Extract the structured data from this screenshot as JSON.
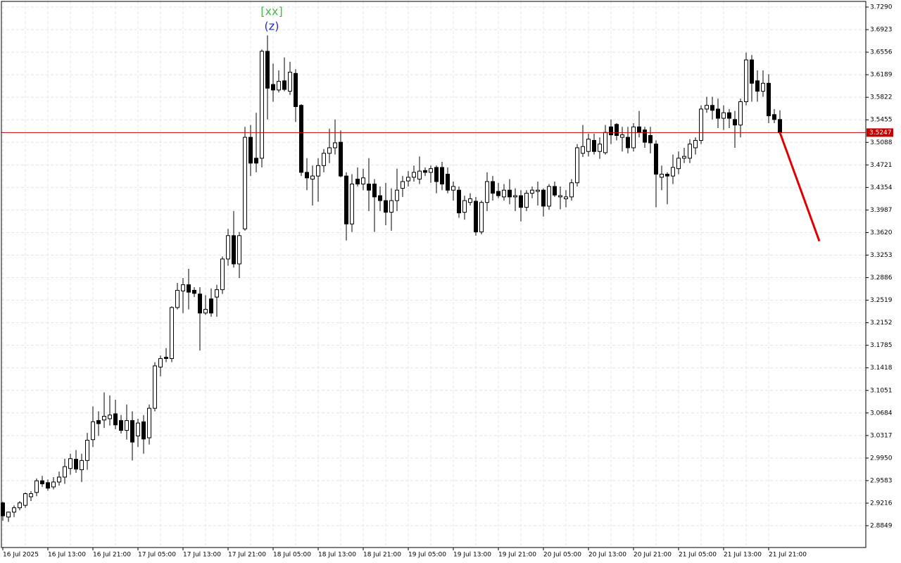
{
  "chart_data": {
    "type": "candlestick",
    "categories": [
      "16 Jul 2025",
      null,
      null,
      null,
      null,
      null,
      null,
      null,
      "16 Jul 13:00",
      null,
      null,
      null,
      null,
      null,
      null,
      null,
      "16 Jul 21:00",
      null,
      null,
      null,
      null,
      null,
      null,
      null,
      "17 Jul 05:00",
      null,
      null,
      null,
      null,
      null,
      null,
      null,
      "17 Jul 13:00",
      null,
      null,
      null,
      null,
      null,
      null,
      null,
      "17 Jul 21:00",
      null,
      null,
      null,
      null,
      null,
      null,
      null,
      "18 Jul 05:00",
      null,
      null,
      null,
      null,
      null,
      null,
      null,
      "18 Jul 13:00",
      null,
      null,
      null,
      null,
      null,
      null,
      null,
      "18 Jul 21:00",
      null,
      null,
      null,
      null,
      null,
      null,
      null,
      "19 Jul 05:00",
      null,
      null,
      null,
      null,
      null,
      null,
      null,
      "19 Jul 13:00",
      null,
      null,
      null,
      null,
      null,
      null,
      null,
      "19 Jul 21:00",
      null,
      null,
      null,
      null,
      null,
      null,
      null,
      "20 Jul 05:00",
      null,
      null,
      null,
      null,
      null,
      null,
      null,
      "20 Jul 13:00",
      null,
      null,
      null,
      null,
      null,
      null,
      null,
      "20 Jul 21:00",
      null,
      null,
      null,
      null,
      null,
      null,
      null,
      "21 Jul 05:00",
      null,
      null,
      null,
      null,
      null,
      null,
      null,
      "21 Jul 13:00",
      null,
      null,
      null,
      null,
      null,
      null,
      null,
      "21 Jul 21:00",
      null,
      null
    ],
    "open": [
      2.922,
      2.899,
      2.907,
      2.914,
      2.918,
      2.932,
      2.939,
      2.958,
      2.955,
      2.948,
      2.956,
      2.964,
      2.978,
      2.993,
      2.976,
      2.991,
      3.025,
      3.056,
      3.057,
      3.059,
      3.067,
      3.056,
      3.04,
      3.056,
      3.031,
      3.054,
      3.028,
      3.076,
      3.143,
      3.159,
      3.157,
      3.24,
      3.267,
      3.277,
      3.268,
      3.262,
      3.231,
      3.254,
      3.257,
      3.269,
      3.319,
      3.357,
      3.311,
      3.368,
      3.517,
      3.483,
      3.483,
      3.657,
      3.603,
      3.594,
      3.609,
      3.592,
      3.621,
      3.569,
      3.46,
      3.449,
      3.454,
      3.471,
      3.491,
      3.5,
      3.509,
      3.454,
      3.376,
      3.449,
      3.441,
      3.441,
      3.441,
      3.422,
      3.414,
      3.395,
      3.414,
      3.434,
      3.446,
      3.452,
      3.449,
      3.463,
      3.46,
      3.468,
      3.468,
      3.457,
      3.431,
      3.431,
      3.395,
      3.411,
      3.413,
      3.363,
      3.411,
      3.445,
      3.429,
      3.42,
      3.431,
      3.42,
      3.422,
      3.403,
      3.426,
      3.429,
      3.431,
      3.405,
      3.437,
      3.42,
      3.417,
      3.42,
      3.443,
      3.491,
      3.494,
      3.512,
      3.494,
      3.492,
      3.534,
      3.538,
      3.517,
      3.517,
      3.5,
      3.534,
      3.529,
      3.52,
      3.506,
      3.452,
      3.457,
      3.454,
      3.466,
      3.483,
      3.483,
      3.5,
      3.512,
      3.563,
      3.569,
      3.563,
      3.548,
      3.557,
      3.546,
      3.537,
      3.575,
      3.643,
      3.609,
      3.592,
      3.605,
      3.554,
      3.546
    ],
    "high": [
      2.924,
      2.908,
      2.918,
      2.925,
      2.939,
      2.941,
      2.962,
      2.966,
      2.96,
      2.964,
      2.973,
      2.994,
      3.002,
      3.008,
      3.002,
      3.036,
      3.079,
      3.071,
      3.102,
      3.097,
      3.09,
      3.065,
      3.082,
      3.071,
      3.059,
      3.065,
      3.082,
      3.151,
      3.162,
      3.174,
      3.242,
      3.28,
      3.288,
      3.303,
      3.273,
      3.273,
      3.26,
      3.271,
      3.277,
      3.323,
      3.368,
      3.397,
      3.363,
      3.534,
      3.537,
      3.557,
      3.66,
      3.683,
      3.637,
      3.626,
      3.647,
      3.64,
      3.628,
      3.571,
      3.483,
      3.471,
      3.483,
      3.498,
      3.531,
      3.546,
      3.528,
      3.46,
      3.457,
      3.468,
      3.466,
      3.483,
      3.449,
      3.437,
      3.443,
      3.434,
      3.466,
      3.454,
      3.462,
      3.471,
      3.486,
      3.468,
      3.471,
      3.471,
      3.477,
      3.468,
      3.445,
      3.437,
      3.422,
      3.426,
      3.42,
      3.414,
      3.46,
      3.454,
      3.443,
      3.441,
      3.449,
      3.434,
      3.431,
      3.431,
      3.437,
      3.445,
      3.434,
      3.441,
      3.445,
      3.437,
      3.431,
      3.449,
      3.506,
      3.537,
      3.523,
      3.523,
      3.517,
      3.537,
      3.546,
      3.54,
      3.534,
      3.534,
      3.54,
      3.56,
      3.534,
      3.534,
      3.512,
      3.471,
      3.46,
      3.489,
      3.494,
      3.5,
      3.514,
      3.517,
      3.569,
      3.583,
      3.583,
      3.58,
      3.569,
      3.563,
      3.56,
      3.58,
      3.655,
      3.651,
      3.626,
      3.626,
      3.62,
      3.563,
      3.561
    ],
    "low": [
      2.893,
      2.891,
      2.899,
      2.91,
      2.914,
      2.925,
      2.933,
      2.948,
      2.942,
      2.944,
      2.95,
      2.953,
      2.968,
      2.971,
      2.956,
      2.976,
      3.013,
      3.031,
      3.044,
      3.048,
      3.042,
      3.035,
      3.025,
      2.991,
      3.013,
      3.002,
      3.017,
      3.071,
      3.128,
      3.151,
      3.151,
      3.237,
      3.231,
      3.237,
      3.257,
      3.17,
      3.228,
      3.225,
      3.225,
      3.262,
      3.308,
      3.305,
      3.288,
      3.365,
      3.454,
      3.46,
      3.468,
      3.546,
      3.575,
      3.59,
      3.592,
      3.586,
      3.542,
      3.454,
      3.431,
      3.406,
      3.412,
      3.46,
      3.475,
      3.489,
      3.452,
      3.349,
      3.363,
      3.437,
      3.431,
      3.397,
      3.363,
      3.397,
      3.374,
      3.365,
      3.397,
      3.42,
      3.437,
      3.445,
      3.441,
      3.454,
      3.443,
      3.426,
      3.431,
      3.426,
      3.414,
      3.386,
      3.383,
      3.406,
      3.357,
      3.359,
      3.397,
      3.414,
      3.418,
      3.414,
      3.408,
      3.397,
      3.38,
      3.397,
      3.418,
      3.406,
      3.388,
      3.399,
      3.42,
      3.4,
      3.403,
      3.414,
      3.437,
      3.485,
      3.486,
      3.489,
      3.482,
      3.489,
      3.506,
      3.512,
      3.494,
      3.491,
      3.494,
      3.517,
      3.5,
      3.491,
      3.403,
      3.431,
      3.408,
      3.441,
      3.457,
      3.475,
      3.475,
      3.489,
      3.506,
      3.557,
      3.546,
      3.532,
      3.529,
      3.532,
      3.5,
      3.517,
      3.569,
      3.575,
      3.575,
      3.583,
      3.54,
      3.54,
      3.523
    ],
    "close": [
      2.901,
      2.907,
      2.914,
      2.922,
      2.937,
      2.937,
      2.958,
      2.953,
      2.946,
      2.956,
      2.964,
      2.981,
      2.994,
      2.977,
      2.991,
      3.024,
      3.054,
      3.051,
      3.063,
      3.065,
      3.049,
      3.04,
      3.056,
      3.021,
      3.052,
      3.026,
      3.076,
      3.145,
      3.157,
      3.157,
      3.24,
      3.268,
      3.277,
      3.265,
      3.263,
      3.231,
      3.237,
      3.231,
      3.269,
      3.319,
      3.357,
      3.311,
      3.357,
      3.517,
      3.475,
      3.475,
      3.657,
      3.597,
      3.594,
      3.608,
      3.595,
      3.623,
      3.567,
      3.46,
      3.451,
      3.454,
      3.471,
      3.491,
      3.5,
      3.508,
      3.454,
      3.376,
      3.441,
      3.441,
      3.451,
      3.431,
      3.42,
      3.414,
      3.395,
      3.414,
      3.431,
      3.445,
      3.452,
      3.46,
      3.462,
      3.46,
      3.466,
      3.445,
      3.441,
      3.431,
      3.437,
      3.394,
      3.414,
      3.417,
      3.363,
      3.411,
      3.445,
      3.426,
      3.422,
      3.431,
      3.42,
      3.422,
      3.403,
      3.426,
      3.431,
      3.431,
      3.405,
      3.437,
      3.423,
      3.422,
      3.42,
      3.443,
      3.5,
      3.502,
      3.514,
      3.494,
      3.506,
      3.525,
      3.521,
      3.52,
      3.521,
      3.5,
      3.534,
      3.525,
      3.509,
      3.508,
      3.457,
      3.457,
      3.454,
      3.468,
      3.483,
      3.486,
      3.506,
      3.512,
      3.563,
      3.569,
      3.561,
      3.548,
      3.557,
      3.548,
      3.537,
      3.575,
      3.643,
      3.605,
      3.592,
      3.605,
      3.552,
      3.546,
      3.5247
    ],
    "up_color": "#ffffff",
    "down_color": "#000000",
    "ylim": [
      2.8494,
      3.7382
    ],
    "yticks": [
      {
        "value": 3.729,
        "label": "3.7290"
      },
      3.6923,
      3.6556,
      3.6189,
      3.5822,
      3.5455,
      3.5088,
      3.4721,
      3.4354,
      3.3987,
      {
        "value": 3.362,
        "label": "3.3620"
      },
      3.3253,
      3.2886,
      3.2519,
      3.2152,
      3.1785,
      3.1418,
      3.1051,
      3.0684,
      3.0317,
      {
        "value": 2.995,
        "label": "2.9950"
      },
      2.9583,
      2.9216,
      2.8849
    ],
    "grid": true,
    "current_price": {
      "value": 3.5247,
      "color": "#c80000"
    },
    "forecast": {
      "color": "#e00000",
      "values": [
        3.5247,
        3.348
      ]
    },
    "annotations": [
      {
        "text": "[xx]",
        "color": "#44bb44"
      },
      {
        "text": "(z)",
        "color": "#2828c8"
      }
    ]
  }
}
